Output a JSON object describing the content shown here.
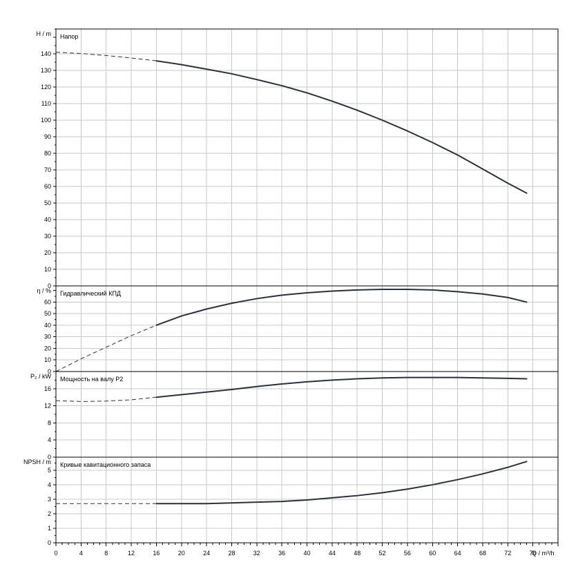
{
  "chart_data": {
    "type": "line",
    "x_axis": {
      "label": "Q / m³/h",
      "range": [
        0,
        80
      ],
      "ticks": [
        0,
        4,
        8,
        12,
        16,
        20,
        24,
        28,
        32,
        36,
        40,
        44,
        48,
        52,
        56,
        60,
        64,
        68,
        72,
        76
      ]
    },
    "panels": [
      {
        "id": "head",
        "ylabel": "H / m",
        "title": "Напор",
        "ylim": [
          0,
          155
        ],
        "ticks": [
          0,
          10,
          20,
          30,
          40,
          50,
          60,
          70,
          80,
          90,
          100,
          110,
          120,
          130,
          140
        ],
        "dashed": {
          "x": [
            0,
            4,
            8,
            12,
            16
          ],
          "y": [
            141,
            140.2,
            139,
            137.5,
            135.8
          ]
        },
        "solid": {
          "x": [
            16,
            20,
            24,
            28,
            32,
            36,
            40,
            44,
            48,
            52,
            56,
            60,
            64,
            68,
            72,
            75
          ],
          "y": [
            135.8,
            133.5,
            130.8,
            128,
            124.5,
            120.8,
            116.5,
            111.5,
            106,
            100,
            93.5,
            86.5,
            79,
            70.5,
            62,
            56
          ]
        }
      },
      {
        "id": "efficiency",
        "ylabel": "η / %",
        "title": "Гидравлический КПД",
        "ylim": [
          0,
          74
        ],
        "ticks": [
          0,
          10,
          20,
          30,
          40,
          50,
          60
        ],
        "dashed": {
          "x": [
            0,
            4,
            8,
            12,
            16
          ],
          "y": [
            0,
            11,
            21,
            31,
            40
          ]
        },
        "solid": {
          "x": [
            16,
            20,
            24,
            28,
            32,
            36,
            40,
            44,
            48,
            52,
            56,
            60,
            64,
            68,
            72,
            75
          ],
          "y": [
            40,
            48,
            54,
            59,
            63,
            66,
            68,
            69.5,
            70.5,
            71,
            71,
            70.5,
            69,
            67,
            64,
            60
          ]
        }
      },
      {
        "id": "power",
        "ylabel": "P₂ / kW",
        "title": "Мощность на валу P2",
        "ylim": [
          0,
          20
        ],
        "ticks": [
          0,
          4,
          8,
          12,
          16
        ],
        "dashed": {
          "x": [
            0,
            4,
            8,
            12,
            16
          ],
          "y": [
            13.2,
            13,
            13.1,
            13.4,
            14
          ]
        },
        "solid": {
          "x": [
            16,
            20,
            24,
            28,
            32,
            36,
            40,
            44,
            48,
            52,
            56,
            60,
            64,
            68,
            72,
            75
          ],
          "y": [
            14,
            14.6,
            15.2,
            15.8,
            16.5,
            17.1,
            17.6,
            18,
            18.3,
            18.5,
            18.6,
            18.6,
            18.6,
            18.5,
            18.4,
            18.3
          ]
        }
      },
      {
        "id": "npsh",
        "ylabel": "NPSH / m",
        "title": "Кривые кавитационного запаса",
        "ylim": [
          0,
          5.9
        ],
        "ticks": [
          0,
          1,
          2,
          3,
          4,
          5
        ],
        "dashed": {
          "x": [
            0,
            4,
            8,
            12,
            16
          ],
          "y": [
            2.7,
            2.7,
            2.7,
            2.7,
            2.7
          ]
        },
        "solid": {
          "x": [
            16,
            20,
            24,
            28,
            32,
            36,
            40,
            44,
            48,
            52,
            56,
            60,
            64,
            68,
            72,
            75
          ],
          "y": [
            2.7,
            2.7,
            2.7,
            2.75,
            2.8,
            2.85,
            2.95,
            3.1,
            3.25,
            3.45,
            3.7,
            4.0,
            4.35,
            4.75,
            5.2,
            5.6
          ]
        }
      }
    ],
    "grid": true,
    "legend": "none"
  }
}
